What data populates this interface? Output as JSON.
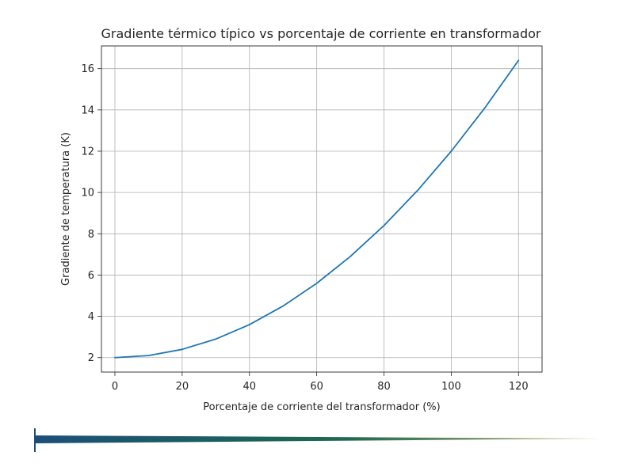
{
  "chart_data": {
    "type": "line",
    "title": "Gradiente térmico típico vs porcentaje de corriente en transformador",
    "xlabel": "Porcentaje de corriente del transformador (%)",
    "ylabel": "Gradiente de temperatura (K)",
    "xlim": [
      -4,
      127
    ],
    "ylim": [
      1.3,
      17.1
    ],
    "x_ticks": [
      0,
      20,
      40,
      60,
      80,
      100,
      120
    ],
    "y_ticks": [
      2,
      4,
      6,
      8,
      10,
      12,
      14,
      16
    ],
    "grid": true,
    "series": [
      {
        "color": "#1f77b4",
        "x": [
          0,
          10,
          20,
          30,
          40,
          50,
          60,
          70,
          80,
          90,
          100,
          110,
          120
        ],
        "y": [
          2.0,
          2.1,
          2.4,
          2.9,
          3.6,
          4.5,
          5.6,
          6.9,
          8.4,
          10.1,
          12.0,
          14.1,
          16.4
        ]
      }
    ]
  },
  "footer": {
    "gradient_start": "#1b4f7a",
    "gradient_mid": "#1d6a4e",
    "gradient_end": "#c9b77a"
  }
}
